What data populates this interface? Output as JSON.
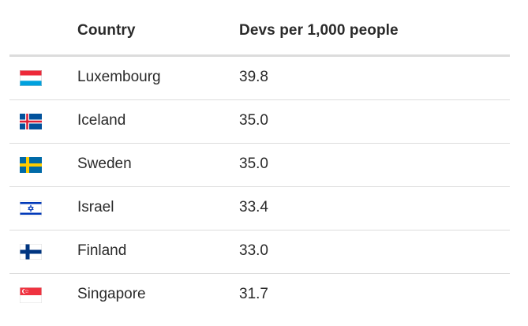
{
  "table": {
    "headers": {
      "country": "Country",
      "value": "Devs per 1,000 people"
    },
    "rows": [
      {
        "country": "Luxembourg",
        "value": "39.8",
        "flag_icon": "luxembourg-flag-icon"
      },
      {
        "country": "Iceland",
        "value": "35.0",
        "flag_icon": "iceland-flag-icon"
      },
      {
        "country": "Sweden",
        "value": "35.0",
        "flag_icon": "sweden-flag-icon"
      },
      {
        "country": "Israel",
        "value": "33.4",
        "flag_icon": "israel-flag-icon"
      },
      {
        "country": "Finland",
        "value": "33.0",
        "flag_icon": "finland-flag-icon"
      },
      {
        "country": "Singapore",
        "value": "31.7",
        "flag_icon": "singapore-flag-icon"
      }
    ]
  },
  "colors": {
    "text": "#2a2a2a",
    "header_rule": "#dcdcdc",
    "row_rule": "#dddddd"
  }
}
